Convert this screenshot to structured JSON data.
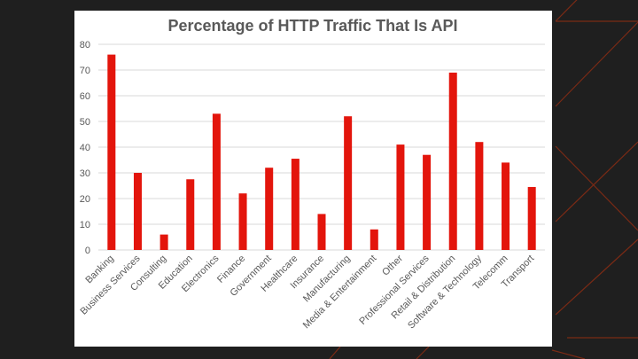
{
  "colors": {
    "background": "#1f1f1f",
    "card": "#ffffff",
    "bar": "#e3150c",
    "accent_lines": "#7a2a15",
    "text": "#595959",
    "grid": "#d9d9d9"
  },
  "chart_data": {
    "type": "bar",
    "title": "Percentage of HTTP Traffic That Is API",
    "xlabel": "",
    "ylabel": "",
    "ylim": [
      0,
      80
    ],
    "yticks": [
      0,
      10,
      20,
      30,
      40,
      50,
      60,
      70,
      80
    ],
    "grid": true,
    "legend": "none",
    "categories": [
      "Banking",
      "Business Services",
      "Consulting",
      "Education",
      "Electronics",
      "Finance",
      "Government",
      "Healthcare",
      "Insurance",
      "Manufacturing",
      "Media & Entertainment",
      "Other",
      "Professional Services",
      "Retail & Distribution",
      "Software & Technology",
      "Telecomm",
      "Transport"
    ],
    "values": [
      76,
      30,
      6,
      27.5,
      53,
      22,
      32,
      35.5,
      14,
      52,
      8,
      41,
      37,
      69,
      42,
      34,
      24.5
    ]
  }
}
